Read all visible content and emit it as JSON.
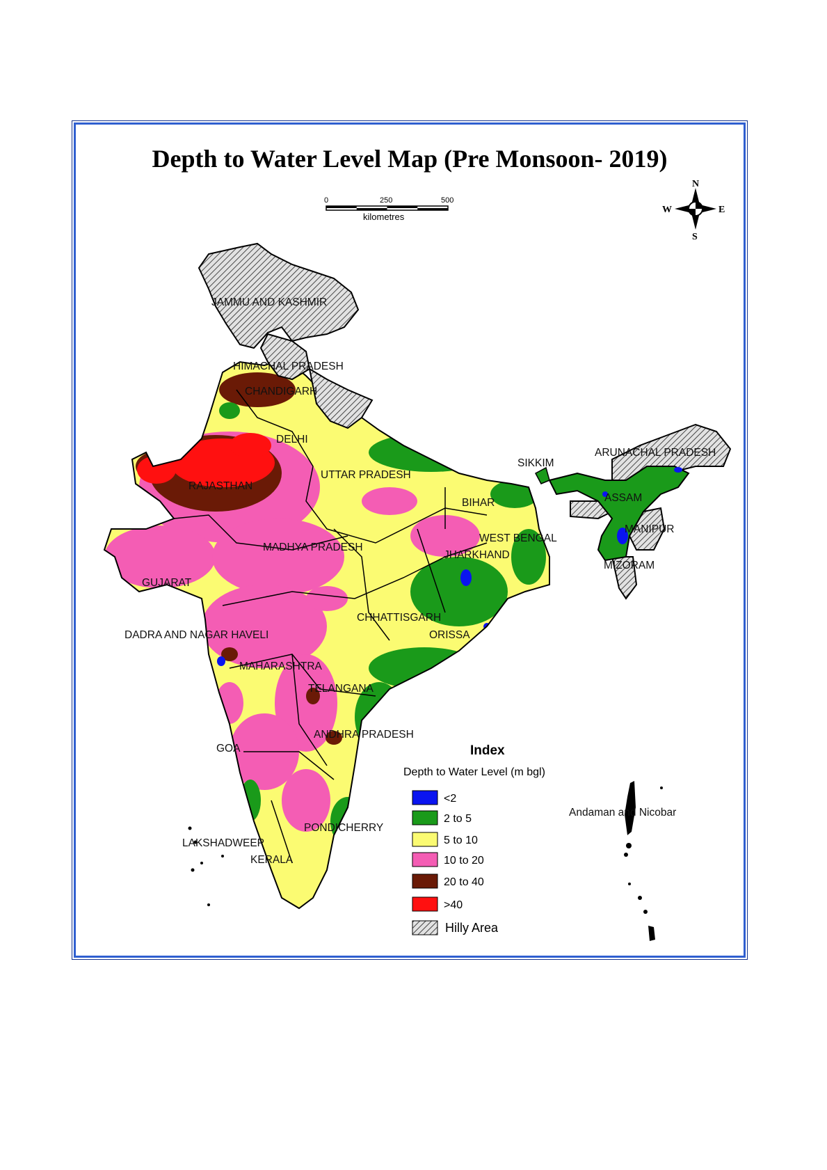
{
  "title": "Depth to Water Level Map (Pre Monsoon- 2019)",
  "scale": {
    "ticks": [
      "0",
      "250",
      "500"
    ],
    "unit": "kilometres"
  },
  "compass": {
    "n": "N",
    "s": "S",
    "e": "E",
    "w": "W"
  },
  "legend": {
    "title": "Index",
    "subtitle": "Depth to Water Level (m bgl)",
    "items": [
      {
        "label": "<2",
        "color": "#0a14f0"
      },
      {
        "label": "2 to 5",
        "color": "#1a9a1a"
      },
      {
        "label": "5 to 10",
        "color": "#fbfb72"
      },
      {
        "label": "10 to 20",
        "color": "#f45db4"
      },
      {
        "label": "20 to 40",
        "color": "#6a1a06"
      },
      {
        "label": ">40",
        "color": "#ff1010"
      },
      {
        "label": "Hilly Area",
        "color": "#d0d0d0"
      }
    ]
  },
  "regions": [
    {
      "id": "jk",
      "label": "JAMMU AND KASHMIR"
    },
    {
      "id": "hp",
      "label": "HIMACHAL PRADESH"
    },
    {
      "id": "ch",
      "label": "CHANDIGARH"
    },
    {
      "id": "dl",
      "label": "DELHI"
    },
    {
      "id": "rj",
      "label": "RAJASTHAN"
    },
    {
      "id": "up",
      "label": "UTTAR PRADESH"
    },
    {
      "id": "sk",
      "label": "SIKKIM"
    },
    {
      "id": "ar",
      "label": "ARUNACHAL PRADESH"
    },
    {
      "id": "as",
      "label": "ASSAM"
    },
    {
      "id": "br",
      "label": "BIHAR"
    },
    {
      "id": "mn",
      "label": "MANIPUR"
    },
    {
      "id": "wb",
      "label": "WEST BENGAL"
    },
    {
      "id": "mp",
      "label": "MADHYA PRADESH"
    },
    {
      "id": "jh",
      "label": "JHARKHAND"
    },
    {
      "id": "mz",
      "label": "MIZORAM"
    },
    {
      "id": "gj",
      "label": "GUJARAT"
    },
    {
      "id": "cg",
      "label": "CHHATTISGARH"
    },
    {
      "id": "or",
      "label": "ORISSA"
    },
    {
      "id": "dn",
      "label": "DADRA AND NAGAR HAVELI"
    },
    {
      "id": "mh",
      "label": "MAHARASHTRA"
    },
    {
      "id": "tg",
      "label": "TELANGANA"
    },
    {
      "id": "ap",
      "label": "ANDHRA PRADESH"
    },
    {
      "id": "ga",
      "label": "GOA"
    },
    {
      "id": "py",
      "label": "PONDICHERRY"
    },
    {
      "id": "ld",
      "label": "LAKSHADWEEP"
    },
    {
      "id": "kl",
      "label": "KERALA"
    },
    {
      "id": "an",
      "label": "Andaman and Nicobar"
    }
  ]
}
